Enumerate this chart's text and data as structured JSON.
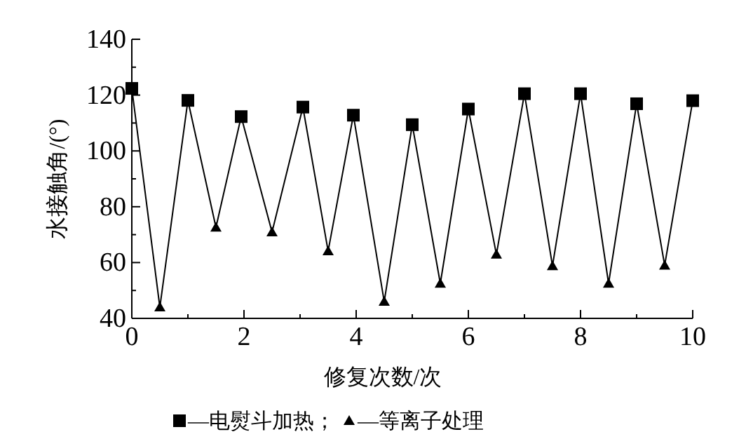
{
  "chart_data": {
    "type": "line",
    "xlabel": "修复次数/次",
    "ylabel": "水接触角/(°)",
    "xlim": [
      0,
      10
    ],
    "ylim": [
      40,
      140
    ],
    "xticks": [
      0,
      {
        "value": 1,
        "label": null
      },
      2,
      {
        "value": 3,
        "label": null
      },
      4,
      {
        "value": 5,
        "label": null
      },
      6,
      {
        "value": 7,
        "label": null
      },
      8,
      {
        "value": 9,
        "label": null
      },
      10
    ],
    "yticks": [
      40,
      {
        "value": 50,
        "label": null
      },
      60,
      {
        "value": 70,
        "label": null
      },
      80,
      {
        "value": 90,
        "label": null
      },
      100,
      {
        "value": 110,
        "label": null
      },
      120,
      {
        "value": 130,
        "label": null
      },
      140
    ],
    "grid": false,
    "legend": "bottom",
    "series": [
      {
        "color": "#000000",
        "marker": "none",
        "x": [
          0,
          0.5,
          1,
          1.5,
          1.95,
          2.5,
          3.05,
          3.5,
          3.95,
          4.5,
          5,
          5.5,
          6,
          6.5,
          7,
          7.5,
          8,
          8.5,
          9,
          9.5,
          10
        ],
        "values": [
          122.4,
          44,
          118.1,
          72.6,
          112.3,
          70.9,
          115.7,
          64.1,
          112.8,
          46,
          109.4,
          52.5,
          115,
          62.9,
          120.5,
          58.8,
          120.5,
          52.5,
          116.9,
          59,
          118
        ]
      },
      {
        "type": "scatter",
        "name": "—电熨斗加热；",
        "color": "#000000",
        "marker": "square",
        "x": [
          0,
          1,
          1.95,
          3.05,
          3.95,
          5,
          6,
          7,
          8,
          9,
          10
        ],
        "values": [
          122.4,
          118.1,
          112.3,
          115.7,
          112.8,
          109.4,
          115,
          120.5,
          120.5,
          116.9,
          118
        ]
      },
      {
        "type": "scatter",
        "name": "—等离子处理",
        "color": "#000000",
        "marker": "triangle",
        "x": [
          0.5,
          1.5,
          2.5,
          3.5,
          4.5,
          5.5,
          6.5,
          7.5,
          8.5,
          9.5
        ],
        "values": [
          44,
          72.6,
          70.9,
          64.1,
          46,
          52.5,
          62.9,
          58.8,
          52.5,
          59
        ]
      }
    ]
  }
}
